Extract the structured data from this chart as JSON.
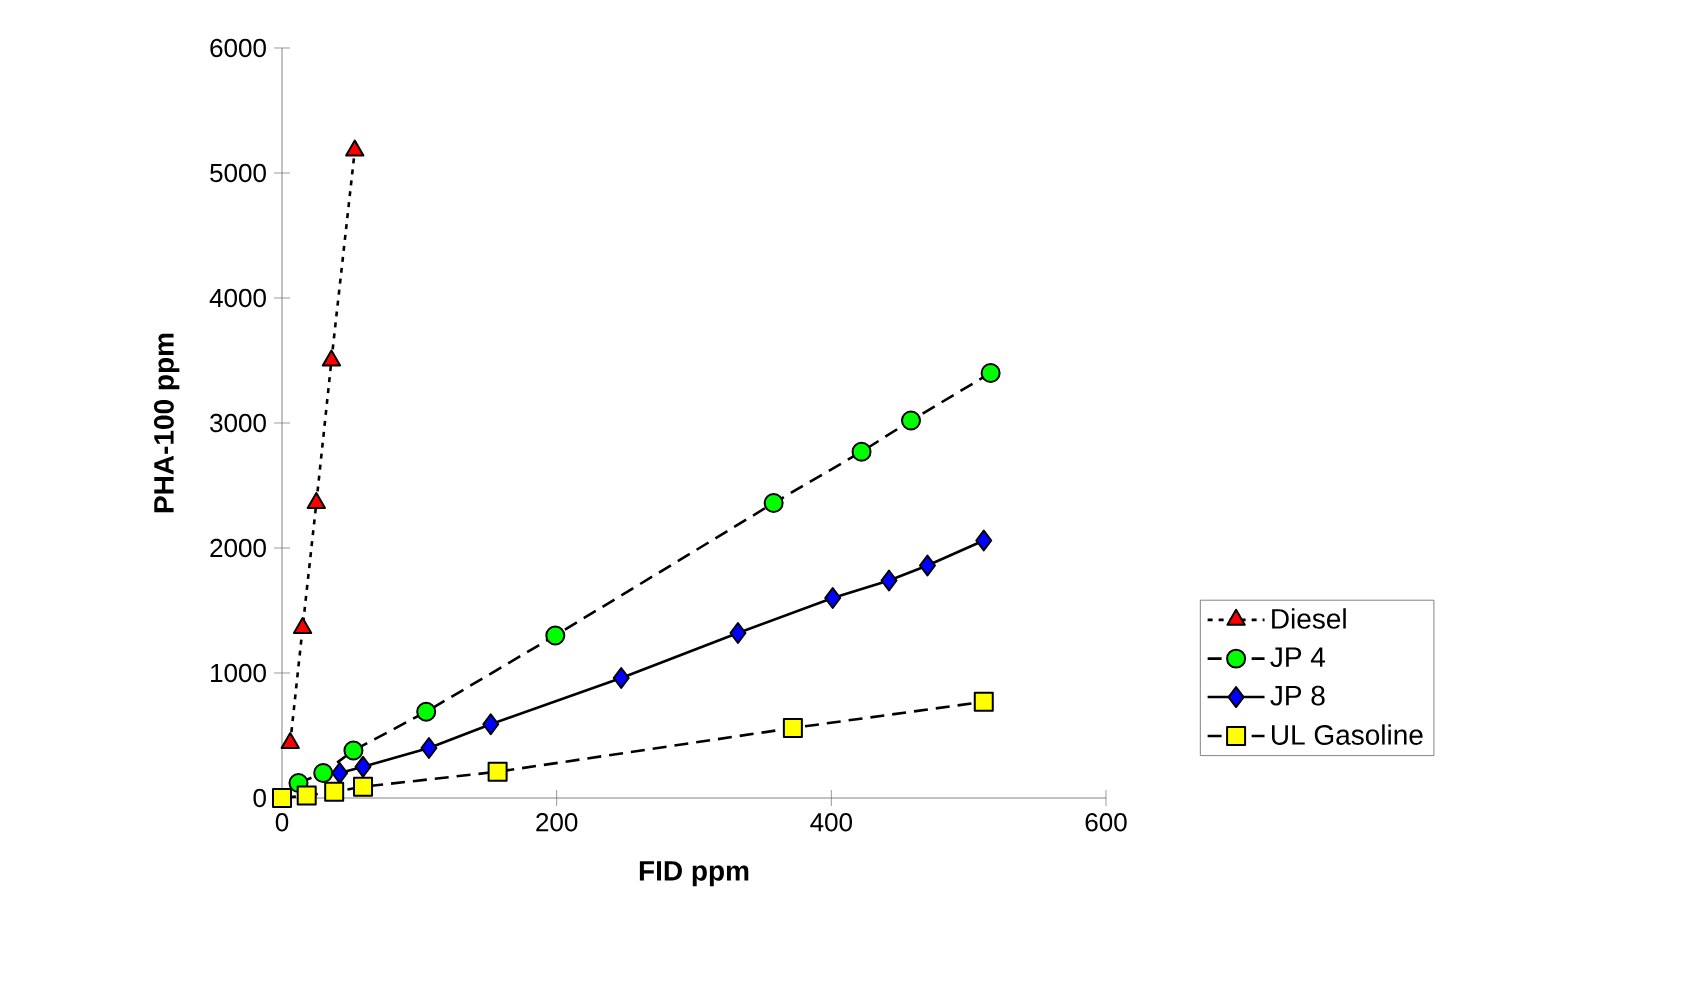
{
  "chart_data": {
    "type": "line",
    "xlabel": "FID ppm",
    "ylabel": "PHA-100 ppm",
    "xlim": [
      0,
      600
    ],
    "ylim": [
      0,
      6000
    ],
    "xticks": [
      0,
      200,
      400,
      600
    ],
    "yticks": [
      0,
      1000,
      2000,
      3000,
      4000,
      5000,
      6000
    ],
    "grid": false,
    "legend": "right",
    "series": [
      {
        "name": "Diesel",
        "color": "#ff0000",
        "marker": "triangle",
        "line_style": "dotted",
        "x": [
          6,
          15,
          25,
          36,
          53
        ],
        "values": [
          440,
          1360,
          2360,
          3500,
          5180
        ]
      },
      {
        "name": "JP 4",
        "color": "#00ff00",
        "marker": "circle",
        "line_style": "dashed",
        "x": [
          12,
          30,
          52,
          105,
          199,
          358,
          422,
          458,
          516
        ],
        "values": [
          120,
          200,
          380,
          690,
          1300,
          2360,
          2770,
          3020,
          3400
        ]
      },
      {
        "name": "JP 8",
        "color": "#0000ff",
        "marker": "diamond",
        "line_style": "solid",
        "x": [
          42,
          59,
          107,
          152,
          247,
          332,
          401,
          442,
          470,
          511
        ],
        "values": [
          200,
          250,
          400,
          590,
          960,
          1320,
          1600,
          1740,
          1860,
          2060
        ]
      },
      {
        "name": "UL Gasoline",
        "color": "#ffff00",
        "marker": "square",
        "line_style": "dashed",
        "x": [
          0,
          18,
          38,
          59,
          157,
          372,
          511
        ],
        "values": [
          0,
          20,
          50,
          90,
          210,
          560,
          770
        ]
      }
    ]
  }
}
